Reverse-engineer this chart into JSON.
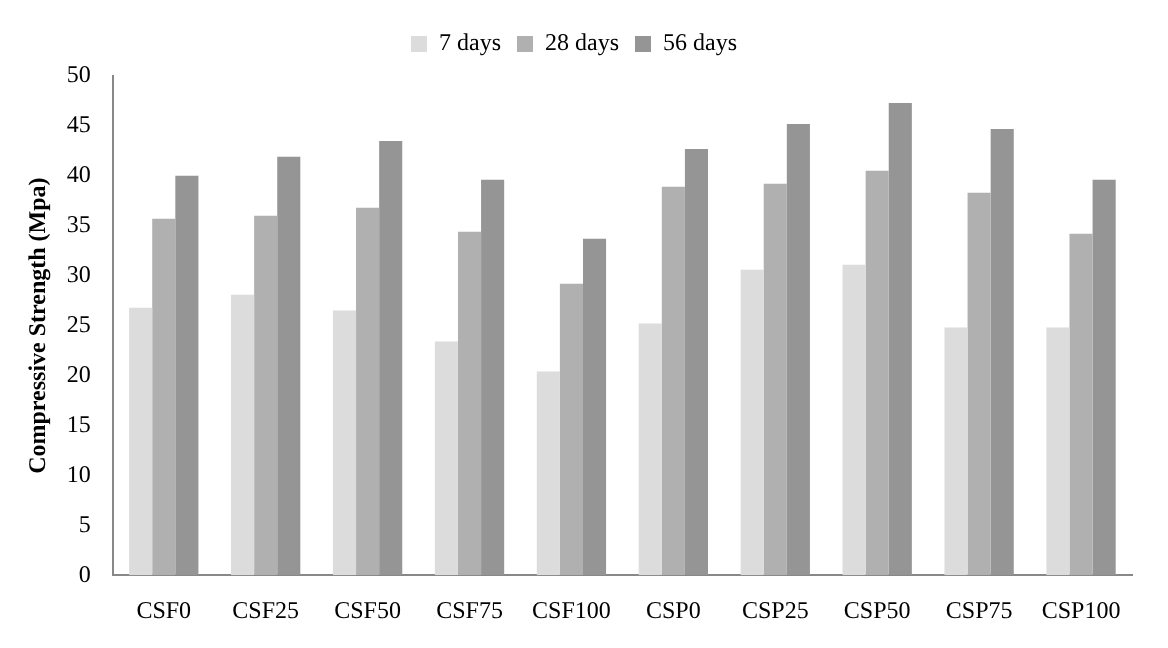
{
  "chart_data": {
    "type": "bar",
    "ylabel": "Compressive Strength (Mpa)",
    "categories": [
      "CSF0",
      "CSF25",
      "CSF50",
      "CSF75",
      "CSF100",
      "CSP0",
      "CSP25",
      "CSP50",
      "CSP75",
      "CSP100"
    ],
    "series": [
      {
        "name": "7 days",
        "color": "#dcdcdc",
        "values": [
          26.8,
          28.1,
          26.5,
          23.4,
          20.4,
          25.2,
          30.6,
          31.1,
          24.8,
          24.8
        ]
      },
      {
        "name": "28 days",
        "color": "#b0b0b0",
        "values": [
          35.7,
          36.0,
          36.8,
          34.4,
          29.2,
          38.9,
          39.2,
          40.5,
          38.3,
          34.2
        ]
      },
      {
        "name": "56 days",
        "color": "#959595",
        "values": [
          40.0,
          41.9,
          43.5,
          39.6,
          33.7,
          42.7,
          45.2,
          47.3,
          44.7,
          39.6
        ]
      }
    ],
    "ylim": [
      0,
      50
    ],
    "yticks": [
      0,
      5,
      10,
      15,
      20,
      25,
      30,
      35,
      40,
      45,
      50
    ],
    "grid": false,
    "legend": "top"
  }
}
